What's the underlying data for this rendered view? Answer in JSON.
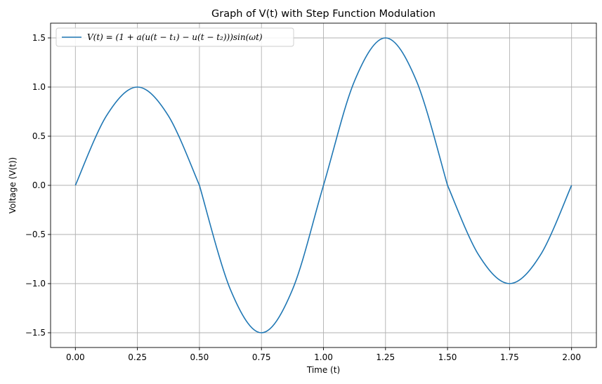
{
  "chart_data": {
    "type": "line",
    "title": "Graph of V(t) with Step Function Modulation",
    "xlabel": "Time (t)",
    "ylabel": "Voltage (V(t))",
    "xlim": [
      -0.1,
      2.1
    ],
    "ylim": [
      -1.65,
      1.65
    ],
    "xticks": [
      0.0,
      0.25,
      0.5,
      0.75,
      1.0,
      1.25,
      1.5,
      1.75,
      2.0
    ],
    "xtick_labels": [
      "0.00",
      "0.25",
      "0.50",
      "0.75",
      "1.00",
      "1.25",
      "1.50",
      "1.75",
      "2.00"
    ],
    "yticks": [
      -1.5,
      -1.0,
      -0.5,
      0.0,
      0.5,
      1.0,
      1.5
    ],
    "ytick_labels": [
      "−1.5",
      "−1.0",
      "−0.5",
      "0.0",
      "0.5",
      "1.0",
      "1.5"
    ],
    "grid": true,
    "legend_position": "top-left",
    "series": [
      {
        "name": "V(t) = (1 + a(u(t − t₁) − u(t − t₂)))sin(ωt)",
        "color": "#1f77b4",
        "x": [
          0.0,
          0.125,
          0.25,
          0.375,
          0.5,
          0.5,
          0.625,
          0.75,
          0.875,
          1.0,
          1.125,
          1.25,
          1.375,
          1.5,
          1.5,
          1.625,
          1.75,
          1.875,
          2.0
        ],
        "y": [
          0.0,
          0.707,
          1.0,
          0.707,
          0.0,
          0.0,
          -1.061,
          -1.5,
          -1.061,
          0.0,
          1.061,
          1.5,
          1.061,
          0.0,
          0.0,
          -0.707,
          -1.0,
          -0.707,
          0.0
        ]
      }
    ]
  }
}
